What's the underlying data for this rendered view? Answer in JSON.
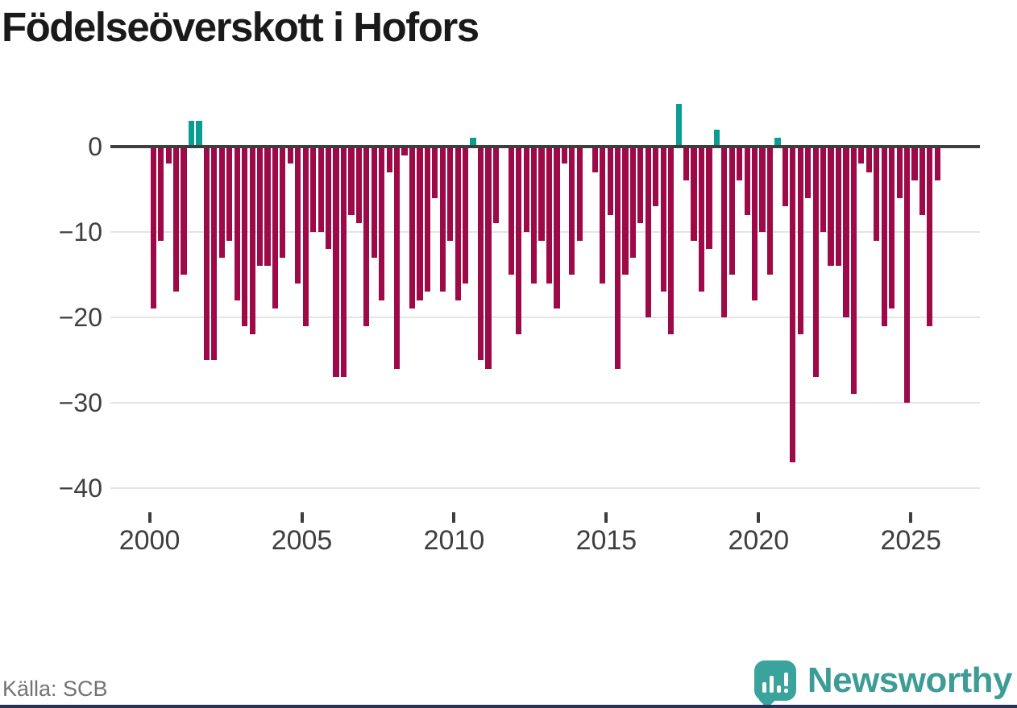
{
  "title": "Födelseöverskott i Hofors",
  "source": {
    "text": "Källa: SCB"
  },
  "brand": {
    "name": "Newsworthy"
  },
  "colors": {
    "negative_bar": "#9e0a48",
    "positive_bar": "#0a9d94",
    "zero_line": "#3e3e3e",
    "grid_line": "#e4e4e4",
    "tick_label": "#3f3f3f",
    "source_text": "#737373",
    "brand_teal": "#3d9c96",
    "bottom_strip": "#2b3153"
  },
  "chart_data": {
    "type": "bar",
    "title": "Födelseöverskott i Hofors",
    "x_start_year": 2000,
    "x_start_quarter": 1,
    "frequency": "quarterly",
    "ylim": [
      -42,
      6
    ],
    "grid": "horizontal",
    "y_ticks": [
      0,
      -10,
      -20,
      -30,
      -40
    ],
    "y_tick_labels": [
      "0",
      "−10",
      "−20",
      "−30",
      "−40"
    ],
    "x_tick_years": [
      2000,
      2005,
      2010,
      2015,
      2020,
      2025
    ],
    "x_tick_labels": [
      "2000",
      "2005",
      "2010",
      "2015",
      "2020",
      "2025"
    ],
    "values": [
      -19,
      -11,
      -2,
      -17,
      -15,
      3,
      3,
      -25,
      -25,
      -13,
      -11,
      -18,
      -21,
      -22,
      -14,
      -14,
      -19,
      -13,
      -2,
      -16,
      -21,
      -10,
      -10,
      -12,
      -27,
      -27,
      -8,
      -9,
      -21,
      -13,
      -18,
      -3,
      -26,
      -1,
      -19,
      -18,
      -17,
      -6,
      -17,
      -11,
      -18,
      -16,
      1,
      -25,
      -26,
      -9,
      0,
      -15,
      -22,
      -10,
      -16,
      -11,
      -16,
      -19,
      -2,
      -15,
      -11,
      0,
      -3,
      -16,
      -8,
      -26,
      -15,
      -13,
      -9,
      -20,
      -7,
      -17,
      -22,
      5,
      -4,
      -11,
      -17,
      -12,
      2,
      -20,
      -15,
      -4,
      -8,
      -18,
      -10,
      -15,
      1,
      -7,
      -37,
      -22,
      -6,
      -27,
      -10,
      -14,
      -14,
      -20,
      -29,
      -2,
      -3,
      -11,
      -21,
      -19,
      -6,
      -30,
      -4,
      -8,
      -21,
      -4
    ]
  }
}
